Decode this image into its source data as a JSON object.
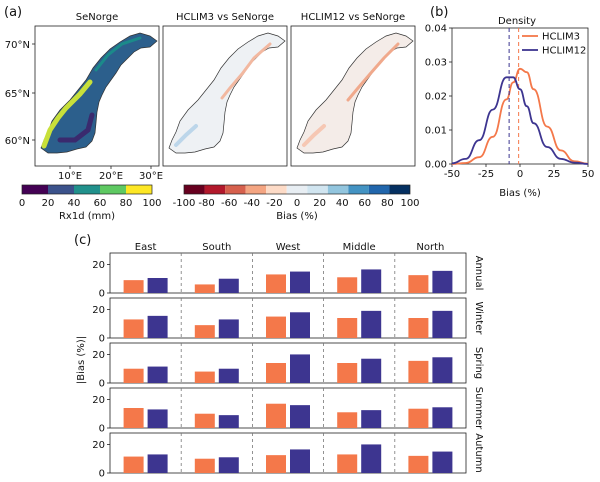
{
  "panel_labels": [
    "(a)",
    "(b)",
    "(c)"
  ],
  "colors": {
    "hclim3": "#f4784a",
    "hclim12": "#3d3590"
  },
  "maps": {
    "titles": [
      "SeNorge",
      "HCLIM3 vs SeNorge",
      "HCLIM12 vs SeNorge"
    ],
    "lat_ticks": [
      "70°N",
      "65°N",
      "60°N"
    ],
    "lon_ticks": [
      "10°E",
      "20°E",
      "30°E"
    ],
    "colorbar_rx1d": {
      "label": "Rx1d (mm)",
      "ticks": [
        "0",
        "20",
        "40",
        "60",
        "80",
        "100"
      ],
      "colors": [
        "#440154",
        "#3b528b",
        "#21918c",
        "#5ec962",
        "#fde725"
      ]
    },
    "colorbar_bias": {
      "label": "Bias (%)",
      "ticks": [
        "-100",
        "-80",
        "-60",
        "-40",
        "-20",
        "0",
        "20",
        "40",
        "60",
        "80",
        "100"
      ],
      "colors": [
        "#67001f",
        "#b2182b",
        "#d6604d",
        "#f4a582",
        "#fddbc7",
        "#e8eef3",
        "#d1e5f0",
        "#92c5de",
        "#4393c3",
        "#2166ac",
        "#053061"
      ]
    }
  },
  "chart_data": [
    {
      "type": "line",
      "title": "Density",
      "xlabel": "Bias (%)",
      "ylabel": "",
      "xlim": [
        -50,
        50
      ],
      "ylim": [
        0,
        0.04
      ],
      "xticks": [
        -50,
        -25,
        0,
        25,
        50
      ],
      "yticks": [
        0.0,
        0.01,
        0.02,
        0.03,
        0.04
      ],
      "ytick_labels": [
        "0.00",
        "0.01",
        "0.02",
        "0.03",
        "0.04"
      ],
      "legend_position": "top-right",
      "series": [
        {
          "name": "HCLIM3",
          "x": [
            -50,
            -40,
            -30,
            -20,
            -10,
            -5,
            0,
            5,
            10,
            20,
            30,
            40,
            50
          ],
          "values": [
            0.0,
            0.0003,
            0.002,
            0.008,
            0.019,
            0.024,
            0.028,
            0.027,
            0.022,
            0.011,
            0.004,
            0.0008,
            0.0001
          ],
          "mean_line": -1
        },
        {
          "name": "HCLIM12",
          "x": [
            -50,
            -40,
            -30,
            -20,
            -10,
            -5,
            0,
            5,
            10,
            20,
            30,
            40,
            50
          ],
          "values": [
            0.0002,
            0.0015,
            0.007,
            0.016,
            0.0255,
            0.0255,
            0.022,
            0.017,
            0.012,
            0.005,
            0.0015,
            0.0004,
            0.0
          ],
          "mean_line": -8
        }
      ]
    },
    {
      "type": "bar",
      "title": "",
      "ylabel": "|Bias (%)|",
      "ylim": [
        0,
        28
      ],
      "yticks": [
        0,
        20
      ],
      "columns": [
        "East",
        "South",
        "West",
        "Middle",
        "North"
      ],
      "rows": [
        "Annual",
        "Winter",
        "Spring",
        "Summer",
        "Autumn"
      ],
      "series": [
        {
          "name": "HCLIM3",
          "values": [
            [
              9,
              6,
              13,
              11,
              12.5
            ],
            [
              13,
              9,
              15,
              14,
              14
            ],
            [
              10,
              8,
              14,
              14,
              15.5
            ],
            [
              14,
              10,
              17,
              11,
              13.5
            ],
            [
              11.5,
              10,
              12.5,
              13,
              12
            ]
          ]
        },
        {
          "name": "HCLIM12",
          "values": [
            [
              10.5,
              10,
              15,
              16.5,
              15.5
            ],
            [
              15.5,
              13,
              18,
              19,
              19
            ],
            [
              11.5,
              10,
              20,
              17,
              18
            ],
            [
              13,
              9,
              16,
              12.5,
              14.5
            ],
            [
              13,
              11,
              16.5,
              20,
              15
            ]
          ]
        }
      ]
    }
  ]
}
